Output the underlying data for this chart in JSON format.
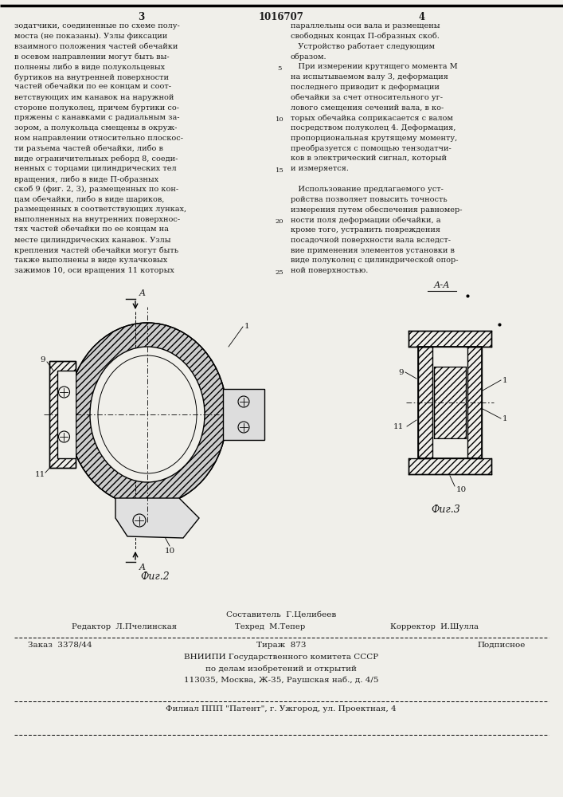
{
  "page_number_left": "3",
  "patent_number": "1016707",
  "page_number_right": "4",
  "bg_color": "#f0efea",
  "text_color": "#1a1a1a",
  "col1_text": [
    "зодатчики, соединенные по схеме полу-",
    "моста (не показаны). Узлы фиксации",
    "взаимного положения частей обечайки",
    "в осевом направлении могут быть вы-",
    "полнены либо в виде полукольцевых",
    "буртиков на внутренней поверхности",
    "частей обечайки по ее концам и соот-",
    "ветствующих им канавок на наружной",
    "стороне полуколец, причем буртики со-",
    "пряжены с канавками с радиальным за-",
    "зором, а полукольца смещены в окруж-",
    "ном направлении относительно плоскос-",
    "ти разъема частей обечайки, либо в",
    "виде ограничительных реборд 8, соеди-",
    "ненных с торцами цилиндрических тел",
    "вращения, либо в виде П-образных",
    "скоб 9 (фиг. 2, 3), размещенных по кон-",
    "цам обечайки, либо в виде шариков,",
    "размещенных в соответствующих лунках,",
    "выполненных на внутренних поверхнос-",
    "тях частей обечайки по ее концам на",
    "месте цилиндрических канавок. Узлы",
    "крепления частей обечайки могут быть",
    "также выполнены в виде кулачковых",
    "зажимов 10, оси вращения 11 которых"
  ],
  "col2_text": [
    "параллельны оси вала и размещены",
    "свободных концах П-образных скоб.",
    "   Устройство работает следующим",
    "образом.",
    "   При измерении крутящего момента М",
    "на испытываемом валу 3, деформация",
    "последнего приводит к деформации",
    "обечайки за счет относительного уг-",
    "лового смещения сечений вала, в ко-",
    "торых обечайка соприкасается с валом",
    "посредством полуколец 4. Деформация,",
    "пропорциональная крутящему моменту,",
    "преобразуется с помощью тензодатчи-",
    "ков в электрический сигнал, который",
    "и измеряется.",
    "",
    "   Использование предлагаемого уст-",
    "ройства позволяет повысить точность",
    "измерения путем обеспечения равномер-",
    "ности поля деформации обечайки, а",
    "кроме того, устранить повреждения",
    "посадочной поверхности вала вследст-",
    "вие применения элементов установки в",
    "виде полуколец с цилиндрической опор-",
    "ной поверхностью."
  ],
  "line_numbers": [
    5,
    10,
    15,
    20,
    25
  ],
  "fig2_caption": "Фиг.2",
  "fig3_caption": "Фиг.3",
  "fig3_header": "А-А",
  "footer_composer": "Составитель  Г.Целибеев",
  "footer_editor": "Редактор  Л.Пчелинская",
  "footer_techred": "Техред  М.Тепер",
  "footer_corrector": "Корректор  И.Шулла",
  "footer_order": "Заказ  3378/44",
  "footer_tirazh": "Тираж  873",
  "footer_podpisnoe": "Подписное",
  "footer_vniip1": "ВНИИПИ Государственного комитета СССР",
  "footer_vniip2": "по делам изобретений и открытий",
  "footer_addr": "113035, Москва, Ж-35, Раушская наб., д. 4/5",
  "footer_filial": "Филиал ППП \"Патент\", г. Ужгород, ул. Проектная, 4"
}
